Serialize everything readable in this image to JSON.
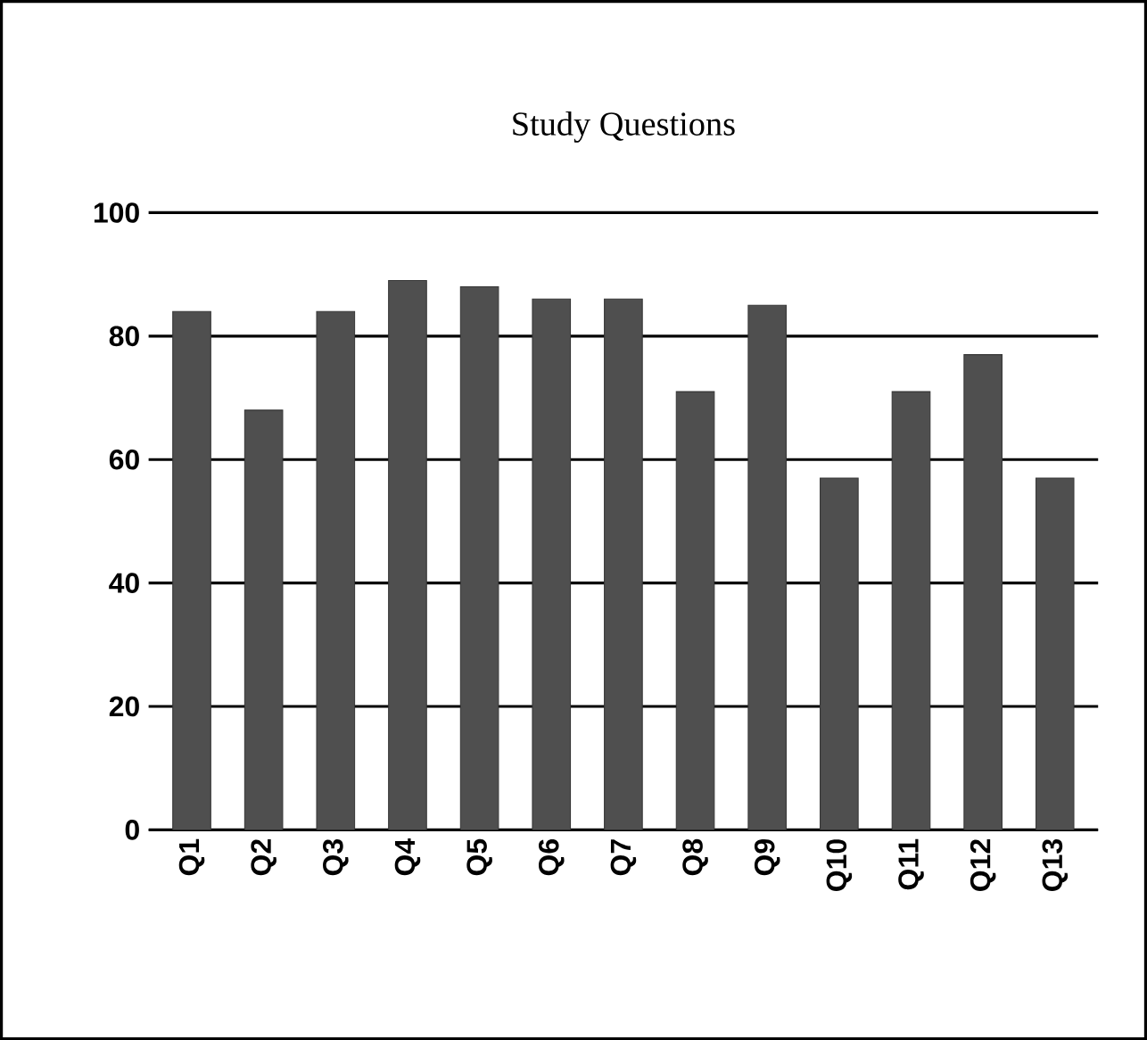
{
  "chart_data": {
    "type": "bar",
    "title": "Study Questions",
    "categories": [
      "Q1",
      "Q2",
      "Q3",
      "Q4",
      "Q5",
      "Q6",
      "Q7",
      "Q8",
      "Q9",
      "Q10",
      "Q11",
      "Q12",
      "Q13"
    ],
    "values": [
      84,
      68,
      84,
      89,
      88,
      86,
      86,
      71,
      85,
      57,
      71,
      77,
      57
    ],
    "color": "#4f4f4f",
    "ylim": [
      0,
      100
    ],
    "yticks": [
      0,
      20,
      40,
      60,
      80,
      100
    ],
    "grid": "y"
  }
}
